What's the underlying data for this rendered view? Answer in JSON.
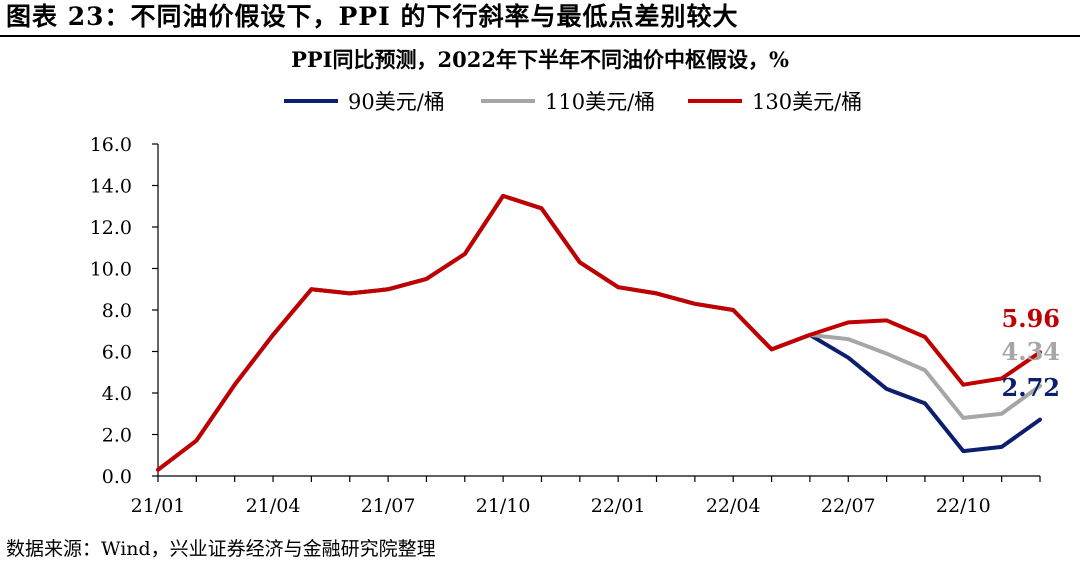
{
  "figure_title": "图表 23：不同油价假设下，PPI 的下行斜率与最低点差别较大",
  "source": "数据来源：Wind，兴业证券经济与金融研究院整理",
  "colors": {
    "s90": "#0b1f6e",
    "s110": "#a6a6a6",
    "s130": "#c00000"
  },
  "chart_data": {
    "type": "line",
    "title": "PPI同比预测，2022年下半年不同油价中枢假设，%",
    "xlabel": "",
    "ylabel": "",
    "ylim": [
      0,
      16
    ],
    "ytick_step": 2,
    "ytick_labels": [
      "0.0",
      "2.0",
      "4.0",
      "6.0",
      "8.0",
      "10.0",
      "12.0",
      "14.0",
      "16.0"
    ],
    "x": [
      "21/01",
      "21/02",
      "21/03",
      "21/04",
      "21/05",
      "21/06",
      "21/07",
      "21/08",
      "21/09",
      "21/10",
      "21/11",
      "21/12",
      "22/01",
      "22/02",
      "22/03",
      "22/04",
      "22/05",
      "22/06",
      "22/07",
      "22/08",
      "22/09",
      "22/10",
      "22/11",
      "22/12"
    ],
    "xtick_labels": [
      "21/01",
      "21/04",
      "21/07",
      "21/10",
      "22/01",
      "22/04",
      "22/07",
      "22/10"
    ],
    "xtick_every": 3,
    "grid": false,
    "legend_position": "top",
    "series": [
      {
        "name": "90美元/桶",
        "values": [
          0.3,
          1.7,
          4.4,
          6.8,
          9.0,
          8.8,
          9.0,
          9.5,
          10.7,
          13.5,
          12.9,
          10.3,
          9.1,
          8.8,
          8.3,
          8.0,
          6.1,
          6.8,
          5.7,
          4.2,
          3.5,
          1.2,
          1.4,
          2.72
        ],
        "end_label": "2.72"
      },
      {
        "name": "110美元/桶",
        "values": [
          0.3,
          1.7,
          4.4,
          6.8,
          9.0,
          8.8,
          9.0,
          9.5,
          10.7,
          13.5,
          12.9,
          10.3,
          9.1,
          8.8,
          8.3,
          8.0,
          6.1,
          6.8,
          6.6,
          5.9,
          5.1,
          2.8,
          3.0,
          4.34
        ],
        "end_label": "4.34"
      },
      {
        "name": "130美元/桶",
        "values": [
          0.3,
          1.7,
          4.4,
          6.8,
          9.0,
          8.8,
          9.0,
          9.5,
          10.7,
          13.5,
          12.9,
          10.3,
          9.1,
          8.8,
          8.3,
          8.0,
          6.1,
          6.8,
          7.4,
          7.5,
          6.7,
          4.4,
          4.7,
          5.96
        ],
        "end_label": "5.96"
      }
    ]
  }
}
